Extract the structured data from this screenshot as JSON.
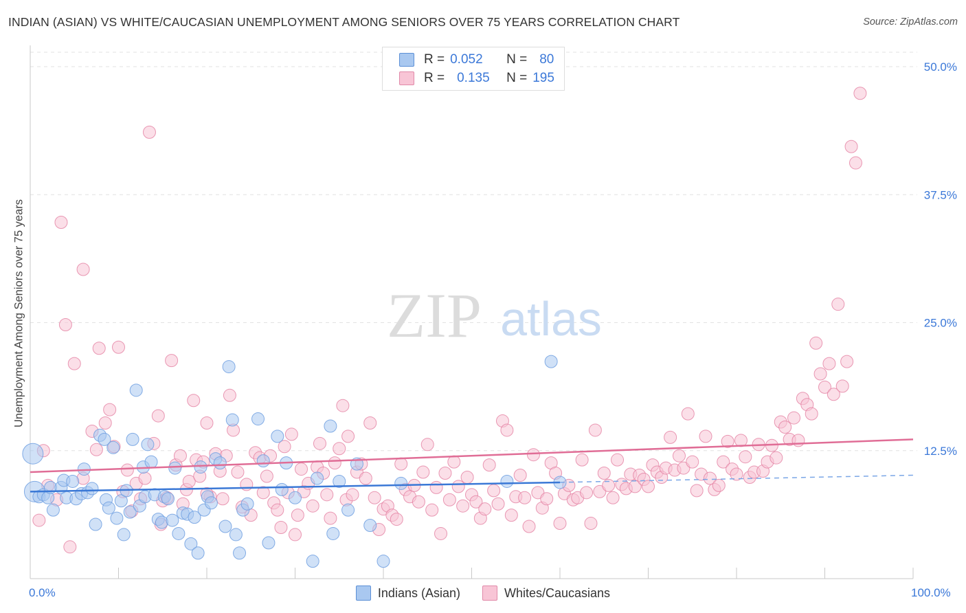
{
  "title": "INDIAN (ASIAN) VS WHITE/CAUCASIAN UNEMPLOYMENT AMONG SENIORS OVER 75 YEARS CORRELATION CHART",
  "source": "Source: ZipAtlas.com",
  "watermark": {
    "zip": "ZIP",
    "atlas": "atlas"
  },
  "legend": {
    "rows": [
      {
        "r_label": "R =",
        "r_value": "0.052",
        "n_label": "N =",
        "n_value": "80",
        "color": "#a9c8f0",
        "border": "#5b8fd6"
      },
      {
        "r_label": "R =",
        "r_value": "0.135",
        "n_label": "N =",
        "n_value": "195",
        "color": "#f8c5d6",
        "border": "#e088a8"
      }
    ]
  },
  "bottom_legend": {
    "series1": "Indians (Asian)",
    "series2": "Whites/Caucasians"
  },
  "x_tick_labels": {
    "left": "0.0%",
    "right": "100.0%"
  },
  "chart_data": {
    "type": "scatter",
    "title": "INDIAN (ASIAN) VS WHITE/CAUCASIAN UNEMPLOYMENT AMONG SENIORS OVER 75 YEARS CORRELATION CHART",
    "xlabel": "",
    "ylabel": "Unemployment Among Seniors over 75 years",
    "xlim": [
      0,
      100
    ],
    "ylim": [
      0,
      50
    ],
    "y_ticks": [
      {
        "value": 12.5,
        "label": "12.5%"
      },
      {
        "value": 25.0,
        "label": "25.0%"
      },
      {
        "value": 37.5,
        "label": "37.5%"
      },
      {
        "value": 50.0,
        "label": "50.0%"
      }
    ],
    "grid": true,
    "series": [
      {
        "name": "Indians (Asian)",
        "color": "#6f9fe0",
        "fill": "#a9c8f0",
        "trend": {
          "x": [
            0,
            60
          ],
          "y": [
            8.5,
            9.4
          ],
          "extended_x": [
            60,
            100
          ],
          "extended_y": [
            9.4,
            10.1
          ]
        },
        "points": [
          [
            0.3,
            12.2
          ],
          [
            0.5,
            8.5
          ],
          [
            1.0,
            8.0
          ],
          [
            1.5,
            8.2
          ],
          [
            2.0,
            7.9
          ],
          [
            2.3,
            8.9
          ],
          [
            2.6,
            6.7
          ],
          [
            3.5,
            8.9
          ],
          [
            3.8,
            9.6
          ],
          [
            4.1,
            7.9
          ],
          [
            4.8,
            9.5
          ],
          [
            5.2,
            7.8
          ],
          [
            5.8,
            8.3
          ],
          [
            6.1,
            10.7
          ],
          [
            6.5,
            8.4
          ],
          [
            7.0,
            8.8
          ],
          [
            7.4,
            5.3
          ],
          [
            7.9,
            14.0
          ],
          [
            8.4,
            13.6
          ],
          [
            8.6,
            7.7
          ],
          [
            8.9,
            6.9
          ],
          [
            9.4,
            12.8
          ],
          [
            9.8,
            5.9
          ],
          [
            10.3,
            7.6
          ],
          [
            10.6,
            4.3
          ],
          [
            10.9,
            8.6
          ],
          [
            11.3,
            6.5
          ],
          [
            11.6,
            13.6
          ],
          [
            12.0,
            18.4
          ],
          [
            12.4,
            7.1
          ],
          [
            12.8,
            10.9
          ],
          [
            13.0,
            8.0
          ],
          [
            13.3,
            13.1
          ],
          [
            13.7,
            11.4
          ],
          [
            14.1,
            8.2
          ],
          [
            14.5,
            5.8
          ],
          [
            14.9,
            5.5
          ],
          [
            15.2,
            8.0
          ],
          [
            15.6,
            7.8
          ],
          [
            16.1,
            5.7
          ],
          [
            16.4,
            10.8
          ],
          [
            16.8,
            4.4
          ],
          [
            17.3,
            6.4
          ],
          [
            17.8,
            6.3
          ],
          [
            18.2,
            3.4
          ],
          [
            18.6,
            6.0
          ],
          [
            19.0,
            2.5
          ],
          [
            19.3,
            10.9
          ],
          [
            19.7,
            6.7
          ],
          [
            20.1,
            8.0
          ],
          [
            20.5,
            7.4
          ],
          [
            21.0,
            11.7
          ],
          [
            21.5,
            11.3
          ],
          [
            22.1,
            5.1
          ],
          [
            22.5,
            20.7
          ],
          [
            22.9,
            15.5
          ],
          [
            23.3,
            4.3
          ],
          [
            23.7,
            2.5
          ],
          [
            24.1,
            6.7
          ],
          [
            24.6,
            7.3
          ],
          [
            25.8,
            15.6
          ],
          [
            26.4,
            11.5
          ],
          [
            27.0,
            3.5
          ],
          [
            28.0,
            13.9
          ],
          [
            28.5,
            8.7
          ],
          [
            29.0,
            11.3
          ],
          [
            30.0,
            7.9
          ],
          [
            32.0,
            1.7
          ],
          [
            32.5,
            9.8
          ],
          [
            34.0,
            14.9
          ],
          [
            34.3,
            4.4
          ],
          [
            35.0,
            9.5
          ],
          [
            36.0,
            6.7
          ],
          [
            37.0,
            11.2
          ],
          [
            38.5,
            5.2
          ],
          [
            40.0,
            1.7
          ],
          [
            42.0,
            9.3
          ],
          [
            54.0,
            9.5
          ],
          [
            59.0,
            21.2
          ],
          [
            60.0,
            9.4
          ]
        ],
        "large_points": [
          [
            0.5,
            8.5
          ],
          [
            0.3,
            12.2
          ]
        ]
      },
      {
        "name": "Whites/Caucasians",
        "color": "#e37fa1",
        "fill": "#f8c5d6",
        "trend": {
          "x": [
            0,
            100
          ],
          "y": [
            10.4,
            13.6
          ]
        },
        "points": [
          [
            1.0,
            5.7
          ],
          [
            1.5,
            12.5
          ],
          [
            2.0,
            9.1
          ],
          [
            3.0,
            7.7
          ],
          [
            3.5,
            34.8
          ],
          [
            4.0,
            24.8
          ],
          [
            4.5,
            3.1
          ],
          [
            5.0,
            21.0
          ],
          [
            6.0,
            9.8
          ],
          [
            6.0,
            30.2
          ],
          [
            7.0,
            14.4
          ],
          [
            7.5,
            12.6
          ],
          [
            7.8,
            22.5
          ],
          [
            8.5,
            15.2
          ],
          [
            9.0,
            16.5
          ],
          [
            9.5,
            12.9
          ],
          [
            10.0,
            22.6
          ],
          [
            10.5,
            8.5
          ],
          [
            11.0,
            10.6
          ],
          [
            11.5,
            6.6
          ],
          [
            12.0,
            9.3
          ],
          [
            12.5,
            7.8
          ],
          [
            13.0,
            9.8
          ],
          [
            13.5,
            43.6
          ],
          [
            14.0,
            13.2
          ],
          [
            14.5,
            15.9
          ],
          [
            14.8,
            5.3
          ],
          [
            15.0,
            7.6
          ],
          [
            15.5,
            7.9
          ],
          [
            16.0,
            21.3
          ],
          [
            16.5,
            11.1
          ],
          [
            17.0,
            12.0
          ],
          [
            17.3,
            7.3
          ],
          [
            17.7,
            8.7
          ],
          [
            18.0,
            9.5
          ],
          [
            18.5,
            17.4
          ],
          [
            18.8,
            11.6
          ],
          [
            19.2,
            10.0
          ],
          [
            19.6,
            11.4
          ],
          [
            20.0,
            15.2
          ],
          [
            20.4,
            8.0
          ],
          [
            21.0,
            12.2
          ],
          [
            21.5,
            10.5
          ],
          [
            21.8,
            7.8
          ],
          [
            22.2,
            12.0
          ],
          [
            22.6,
            17.9
          ],
          [
            23.0,
            14.5
          ],
          [
            23.5,
            10.4
          ],
          [
            24.0,
            7.0
          ],
          [
            24.5,
            9.2
          ],
          [
            25.0,
            6.2
          ],
          [
            25.5,
            12.3
          ],
          [
            26.0,
            11.8
          ],
          [
            26.4,
            8.4
          ],
          [
            26.8,
            10.0
          ],
          [
            27.2,
            12.0
          ],
          [
            27.6,
            7.4
          ],
          [
            28.0,
            6.7
          ],
          [
            28.4,
            5.0
          ],
          [
            28.8,
            12.9
          ],
          [
            29.2,
            8.4
          ],
          [
            29.6,
            14.1
          ],
          [
            30.0,
            4.3
          ],
          [
            30.3,
            6.2
          ],
          [
            30.7,
            10.7
          ],
          [
            31.0,
            8.5
          ],
          [
            31.5,
            9.3
          ],
          [
            32.0,
            7.1
          ],
          [
            32.5,
            10.9
          ],
          [
            32.8,
            13.2
          ],
          [
            33.2,
            10.3
          ],
          [
            33.6,
            8.2
          ],
          [
            34.0,
            5.9
          ],
          [
            34.5,
            11.3
          ],
          [
            35.0,
            12.7
          ],
          [
            35.4,
            16.9
          ],
          [
            35.8,
            7.7
          ],
          [
            36.0,
            13.9
          ],
          [
            36.5,
            8.2
          ],
          [
            37.0,
            10.4
          ],
          [
            37.5,
            11.2
          ],
          [
            38.0,
            9.8
          ],
          [
            38.5,
            15.2
          ],
          [
            39.0,
            7.9
          ],
          [
            39.5,
            4.8
          ],
          [
            40.0,
            6.8
          ],
          [
            40.5,
            7.1
          ],
          [
            41.0,
            6.2
          ],
          [
            41.5,
            5.8
          ],
          [
            42.0,
            11.2
          ],
          [
            42.5,
            8.7
          ],
          [
            43.0,
            8.0
          ],
          [
            43.5,
            9.1
          ],
          [
            44.0,
            7.5
          ],
          [
            44.5,
            10.4
          ],
          [
            45.0,
            13.1
          ],
          [
            45.5,
            6.7
          ],
          [
            46.0,
            8.9
          ],
          [
            46.5,
            4.4
          ],
          [
            47.0,
            10.3
          ],
          [
            47.5,
            7.7
          ],
          [
            48.0,
            11.4
          ],
          [
            48.5,
            9.0
          ],
          [
            49.0,
            7.1
          ],
          [
            49.5,
            9.9
          ],
          [
            50.0,
            8.2
          ],
          [
            50.5,
            7.5
          ],
          [
            51.0,
            5.9
          ],
          [
            51.5,
            6.8
          ],
          [
            52.0,
            11.1
          ],
          [
            52.5,
            8.6
          ],
          [
            53.0,
            7.3
          ],
          [
            53.5,
            15.4
          ],
          [
            54.0,
            14.5
          ],
          [
            54.5,
            6.2
          ],
          [
            55.0,
            8.0
          ],
          [
            55.5,
            10.1
          ],
          [
            56.0,
            7.9
          ],
          [
            56.5,
            5.1
          ],
          [
            57.0,
            12.1
          ],
          [
            57.5,
            8.4
          ],
          [
            58.0,
            6.9
          ],
          [
            58.5,
            7.8
          ],
          [
            59.0,
            11.3
          ],
          [
            59.5,
            10.3
          ],
          [
            60.0,
            5.4
          ],
          [
            60.5,
            8.3
          ],
          [
            61.0,
            9.1
          ],
          [
            61.5,
            7.7
          ],
          [
            62.0,
            7.9
          ],
          [
            62.5,
            11.6
          ],
          [
            63.0,
            8.4
          ],
          [
            63.5,
            5.4
          ],
          [
            64.0,
            14.5
          ],
          [
            64.5,
            8.5
          ],
          [
            65.0,
            10.3
          ],
          [
            65.5,
            9.1
          ],
          [
            66.0,
            7.9
          ],
          [
            66.5,
            11.6
          ],
          [
            67.0,
            9.2
          ],
          [
            67.5,
            8.8
          ],
          [
            68.0,
            10.2
          ],
          [
            68.5,
            9.0
          ],
          [
            69.0,
            10.1
          ],
          [
            69.5,
            9.7
          ],
          [
            70.0,
            9.0
          ],
          [
            70.5,
            11.1
          ],
          [
            71.0,
            10.4
          ],
          [
            71.5,
            9.9
          ],
          [
            72.0,
            10.8
          ],
          [
            72.5,
            13.8
          ],
          [
            73.0,
            10.6
          ],
          [
            73.5,
            12.0
          ],
          [
            74.0,
            10.8
          ],
          [
            74.5,
            16.1
          ],
          [
            75.0,
            11.4
          ],
          [
            75.5,
            8.6
          ],
          [
            76.0,
            10.2
          ],
          [
            76.5,
            13.9
          ],
          [
            77.0,
            9.8
          ],
          [
            77.5,
            8.7
          ],
          [
            78.0,
            9.1
          ],
          [
            78.5,
            11.4
          ],
          [
            79.0,
            13.4
          ],
          [
            79.5,
            10.7
          ],
          [
            80.0,
            10.2
          ],
          [
            80.5,
            13.5
          ],
          [
            81.0,
            11.9
          ],
          [
            81.5,
            9.9
          ],
          [
            82.0,
            10.4
          ],
          [
            82.5,
            13.1
          ],
          [
            83.0,
            10.5
          ],
          [
            83.5,
            11.4
          ],
          [
            84.0,
            13.0
          ],
          [
            84.5,
            11.8
          ],
          [
            85.0,
            15.3
          ],
          [
            85.5,
            14.8
          ],
          [
            86.0,
            13.6
          ],
          [
            86.5,
            15.7
          ],
          [
            87.0,
            13.5
          ],
          [
            87.5,
            17.6
          ],
          [
            88.0,
            17.0
          ],
          [
            88.5,
            16.1
          ],
          [
            89.0,
            23.0
          ],
          [
            89.5,
            20.0
          ],
          [
            90.0,
            18.7
          ],
          [
            90.5,
            21.0
          ],
          [
            91.0,
            18.0
          ],
          [
            91.5,
            26.8
          ],
          [
            92.0,
            18.8
          ],
          [
            92.5,
            21.2
          ],
          [
            93.0,
            42.2
          ],
          [
            93.5,
            40.6
          ],
          [
            94.0,
            47.4
          ],
          [
            20.0,
            8.3
          ]
        ]
      }
    ]
  }
}
